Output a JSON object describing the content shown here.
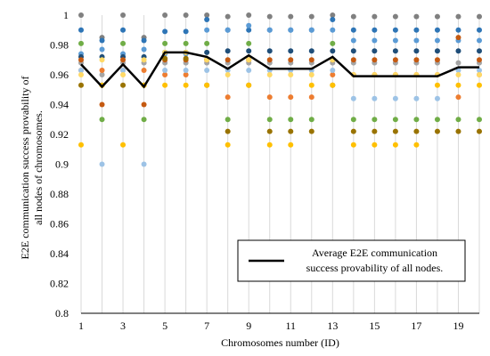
{
  "chart_data": {
    "type": "scatter",
    "title": "",
    "xlabel": "Chromosomes number (ID)",
    "ylabel_lines": [
      "E2E communication  success provability of",
      "all nodes of chromosomes."
    ],
    "xlim": [
      1,
      20
    ],
    "xticks": [
      1,
      3,
      5,
      7,
      9,
      11,
      13,
      15,
      17,
      19
    ],
    "ylim": [
      0.8,
      1.0
    ],
    "yticks": [
      0.8,
      0.82,
      0.84,
      0.86,
      0.88,
      0.9,
      0.92,
      0.94,
      0.96,
      0.98,
      1.0
    ],
    "grid": "vertical",
    "legend": {
      "position": "bottom-right",
      "lines": [
        "Average E2E communication",
        "success provability of all nodes."
      ]
    },
    "series": [
      {
        "color": "#808080",
        "y": [
          1.0,
          0.985,
          1.0,
          0.985,
          1.0,
          1.0,
          1.0,
          0.999,
          1.0,
          0.999,
          0.999,
          0.999,
          1.0,
          0.999,
          0.999,
          0.999,
          0.999,
          0.999,
          0.999,
          0.999
        ]
      },
      {
        "color": "#2E75B6",
        "y": [
          0.99,
          0.983,
          0.99,
          0.983,
          0.989,
          0.989,
          0.997,
          0.99,
          0.99,
          0.99,
          0.99,
          0.99,
          0.997,
          0.99,
          0.99,
          0.99,
          0.99,
          0.99,
          0.99,
          0.99
        ]
      },
      {
        "color": "#5B9BD5",
        "y": [
          0.974,
          0.977,
          0.974,
          0.977,
          0.974,
          0.974,
          0.99,
          0.99,
          0.993,
          0.99,
          0.99,
          0.99,
          0.99,
          0.983,
          0.983,
          0.983,
          0.983,
          0.983,
          0.983,
          0.983
        ]
      },
      {
        "color": "#1F4E79",
        "y": [
          0.972,
          0.972,
          0.972,
          0.972,
          0.975,
          0.975,
          0.975,
          0.976,
          0.976,
          0.976,
          0.976,
          0.976,
          0.976,
          0.976,
          0.976,
          0.976,
          0.976,
          0.976,
          0.976,
          0.976
        ]
      },
      {
        "color": "#70AD47",
        "y": [
          0.981,
          0.93,
          0.981,
          0.93,
          0.981,
          0.981,
          0.981,
          0.93,
          0.981,
          0.93,
          0.93,
          0.93,
          0.981,
          0.93,
          0.93,
          0.93,
          0.93,
          0.93,
          0.93,
          0.93
        ]
      },
      {
        "color": "#A5A5A5",
        "y": [
          0.968,
          0.96,
          0.968,
          0.968,
          0.968,
          0.968,
          0.968,
          0.968,
          0.968,
          0.968,
          0.968,
          0.968,
          0.968,
          0.968,
          0.968,
          0.968,
          0.968,
          0.968,
          0.968,
          0.968
        ]
      },
      {
        "color": "#C55A11",
        "y": [
          0.97,
          0.94,
          0.97,
          0.94,
          0.97,
          0.97,
          0.97,
          0.97,
          0.97,
          0.97,
          0.97,
          0.97,
          0.97,
          0.97,
          0.97,
          0.97,
          0.97,
          0.97,
          0.985,
          0.97
        ]
      },
      {
        "color": "#997300",
        "y": [
          0.953,
          0.953,
          0.953,
          0.953,
          0.971,
          0.971,
          0.953,
          0.922,
          0.953,
          0.922,
          0.922,
          0.922,
          0.953,
          0.922,
          0.922,
          0.922,
          0.922,
          0.922,
          0.922,
          0.922
        ]
      },
      {
        "color": "#FFC000",
        "y": [
          0.913,
          0.953,
          0.913,
          0.953,
          0.953,
          0.953,
          0.953,
          0.913,
          0.953,
          0.913,
          0.913,
          0.953,
          0.953,
          0.913,
          0.913,
          0.913,
          0.913,
          0.953,
          0.953,
          0.953
        ]
      },
      {
        "color": "#ED7D31",
        "y": [
          0.963,
          0.963,
          0.963,
          0.963,
          0.96,
          0.96,
          0.97,
          0.945,
          0.97,
          0.945,
          0.945,
          0.945,
          0.96,
          0.96,
          0.96,
          0.96,
          0.96,
          0.96,
          0.945,
          0.96
        ]
      },
      {
        "color": "#9DC3E6",
        "y": [
          0.963,
          0.9,
          0.963,
          0.9,
          0.963,
          0.963,
          0.963,
          0.963,
          0.963,
          0.963,
          0.963,
          0.963,
          0.963,
          0.944,
          0.944,
          0.944,
          0.944,
          0.944,
          0.963,
          0.963
        ]
      },
      {
        "color": "#FFD966",
        "y": [
          0.96,
          0.97,
          0.96,
          0.97,
          0.975,
          0.975,
          0.97,
          0.96,
          0.97,
          0.96,
          0.96,
          0.96,
          0.97,
          0.96,
          0.96,
          0.96,
          0.96,
          0.96,
          0.96,
          0.96
        ]
      }
    ],
    "average": {
      "name": "Average E2E communication success provability of all nodes.",
      "y": [
        0.967,
        0.952,
        0.967,
        0.952,
        0.975,
        0.975,
        0.972,
        0.964,
        0.973,
        0.964,
        0.964,
        0.964,
        0.972,
        0.959,
        0.959,
        0.959,
        0.959,
        0.959,
        0.965,
        0.965
      ]
    }
  }
}
